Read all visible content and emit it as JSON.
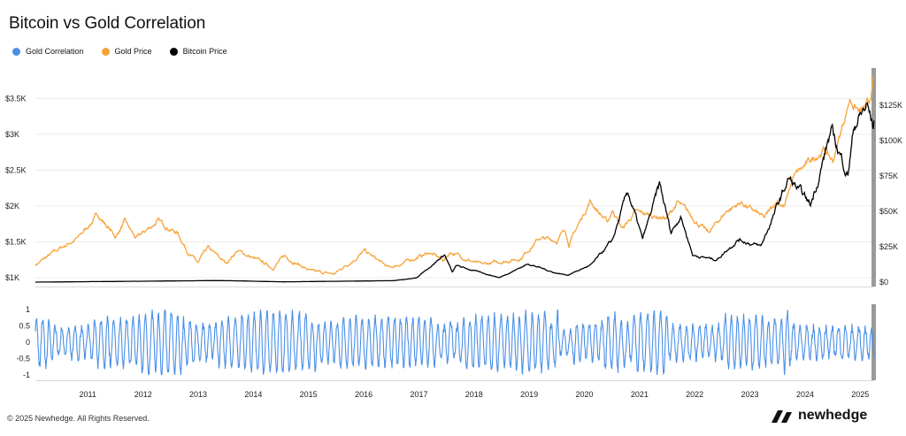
{
  "title": "Bitcoin vs Gold Correlation",
  "legend": [
    {
      "label": "Gold Correlation",
      "color": "#4a8fe7"
    },
    {
      "label": "Gold Price",
      "color": "#f7a33a"
    },
    {
      "label": "Bitcoin Price",
      "color": "#000000"
    }
  ],
  "footer": "© 2025 Newhedge. All Rights Reserved.",
  "brand": {
    "name": "newhedge",
    "icon": "newhedge-logo-icon"
  },
  "chart_data": {
    "type": "line",
    "x_axis": {
      "type": "date",
      "range": [
        "2010-07-18",
        "2025-09-30"
      ],
      "ticks": [
        "2011",
        "2012",
        "2013",
        "2014",
        "2015",
        "2016",
        "2017",
        "2018",
        "2019",
        "2020",
        "2021",
        "2022",
        "2023",
        "2024",
        "2025"
      ]
    },
    "y_left": {
      "ticks": [
        "$1K",
        "$1.5K",
        "$2K",
        "$2.5K",
        "$3K",
        "$3.5K"
      ],
      "range": [
        1000,
        3800
      ]
    },
    "y_right": {
      "ticks": [
        "$0",
        "$25K",
        "$50K",
        "$75K",
        "$100K",
        "$125K"
      ],
      "range": [
        0,
        148000
      ]
    },
    "y_correlation": {
      "ticks": [
        "1",
        "0.5",
        "0",
        "-0.5",
        "-1"
      ],
      "range": [
        -1,
        1
      ]
    },
    "series": [
      {
        "name": "Gold Price",
        "axis": "left",
        "color": "#f7a33a",
        "points": [
          [
            "2010-07-18",
            1180
          ],
          [
            "2010-12-31",
            1410
          ],
          [
            "2011-04-30",
            1560
          ],
          [
            "2011-09-05",
            1880
          ],
          [
            "2011-12-31",
            1570
          ],
          [
            "2012-02-29",
            1780
          ],
          [
            "2012-05-15",
            1540
          ],
          [
            "2012-10-05",
            1790
          ],
          [
            "2013-02-15",
            1620
          ],
          [
            "2013-04-15",
            1390
          ],
          [
            "2013-06-28",
            1200
          ],
          [
            "2013-09-01",
            1410
          ],
          [
            "2013-12-31",
            1200
          ],
          [
            "2014-03-15",
            1380
          ],
          [
            "2014-11-05",
            1140
          ],
          [
            "2015-01-22",
            1300
          ],
          [
            "2015-07-24",
            1080
          ],
          [
            "2015-12-17",
            1050
          ],
          [
            "2016-07-06",
            1370
          ],
          [
            "2016-12-15",
            1130
          ],
          [
            "2017-09-08",
            1350
          ],
          [
            "2017-12-12",
            1240
          ],
          [
            "2018-01-25",
            1360
          ],
          [
            "2018-08-16",
            1175
          ],
          [
            "2019-05-01",
            1270
          ],
          [
            "2019-09-04",
            1550
          ],
          [
            "2019-12-31",
            1520
          ],
          [
            "2020-02-24",
            1680
          ],
          [
            "2020-03-19",
            1470
          ],
          [
            "2020-08-06",
            2070
          ],
          [
            "2020-11-30",
            1770
          ],
          [
            "2021-01-05",
            1950
          ],
          [
            "2021-03-08",
            1680
          ],
          [
            "2021-06-01",
            1910
          ],
          [
            "2021-12-31",
            1830
          ],
          [
            "2022-03-08",
            2050
          ],
          [
            "2022-09-28",
            1620
          ],
          [
            "2023-01-31",
            1940
          ],
          [
            "2023-05-04",
            2050
          ],
          [
            "2023-10-05",
            1820
          ],
          [
            "2023-12-28",
            2080
          ],
          [
            "2024-02-14",
            1990
          ],
          [
            "2024-04-12",
            2400
          ],
          [
            "2024-10-30",
            2790
          ],
          [
            "2024-12-31",
            2620
          ],
          [
            "2025-04-22",
            3500
          ],
          [
            "2025-06-30",
            3300
          ],
          [
            "2025-08-28",
            3400
          ],
          [
            "2025-09-28",
            3780
          ]
        ]
      },
      {
        "name": "Bitcoin Price",
        "axis": "right",
        "color": "#000000",
        "points": [
          [
            "2010-07-18",
            0
          ],
          [
            "2013-11-30",
            1100
          ],
          [
            "2015-01-15",
            200
          ],
          [
            "2017-01-01",
            1000
          ],
          [
            "2017-06-12",
            2900
          ],
          [
            "2017-12-17",
            19500
          ],
          [
            "2018-02-06",
            6900
          ],
          [
            "2018-03-05",
            11500
          ],
          [
            "2018-12-15",
            3200
          ],
          [
            "2019-06-26",
            13000
          ],
          [
            "2019-12-17",
            6600
          ],
          [
            "2020-03-12",
            5000
          ],
          [
            "2020-08-17",
            12300
          ],
          [
            "2020-12-31",
            29000
          ],
          [
            "2021-04-14",
            63500
          ],
          [
            "2021-07-20",
            29800
          ],
          [
            "2021-11-10",
            68000
          ],
          [
            "2022-01-24",
            35000
          ],
          [
            "2022-03-28",
            47500
          ],
          [
            "2022-06-18",
            19000
          ],
          [
            "2022-11-21",
            15800
          ],
          [
            "2023-04-14",
            30400
          ],
          [
            "2023-09-11",
            25000
          ],
          [
            "2024-03-14",
            73000
          ],
          [
            "2024-08-05",
            54000
          ],
          [
            "2024-12-17",
            106000
          ],
          [
            "2025-04-08",
            76500
          ],
          [
            "2025-05-22",
            111500
          ],
          [
            "2025-08-14",
            124000
          ],
          [
            "2025-09-25",
            109000
          ],
          [
            "2025-09-30",
            114000
          ]
        ]
      },
      {
        "name": "Gold Correlation",
        "axis": "correlation",
        "color": "#4a8fe7",
        "range": [
          -1,
          1
        ]
      }
    ]
  }
}
